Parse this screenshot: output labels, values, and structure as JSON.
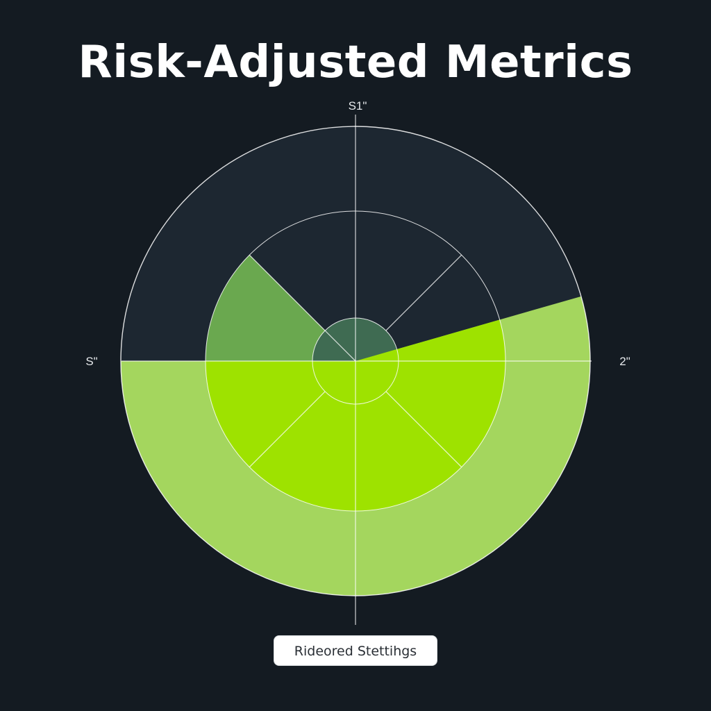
{
  "header": {
    "title": "Risk-Adjusted Metrics"
  },
  "chart_data": {
    "type": "pie",
    "style": "radial",
    "axis_labels": {
      "top": "S1\"",
      "left": "S\"",
      "right": "2\""
    },
    "rings": 3,
    "wedges": [
      {
        "from_deg": 0,
        "to_deg": 16,
        "ring": "outer",
        "level": "high",
        "color": "#a4d65e"
      },
      {
        "from_deg": 16,
        "to_deg": 180,
        "ring": "middle",
        "level": "medium",
        "color": "#9ee200"
      },
      {
        "from_deg": 180,
        "to_deg": 360,
        "ring": "outer",
        "level": "high",
        "color": "#a4d65e"
      },
      {
        "from_deg": 135,
        "to_deg": 180,
        "ring": "middle",
        "level": "low",
        "color": "#6aa84f"
      },
      {
        "from_deg": 0,
        "to_deg": 16,
        "ring": "middle",
        "level": "medium",
        "color": "#9ee200"
      }
    ],
    "legend": "none",
    "grid": true,
    "colors": {
      "background": "#141b22",
      "disk": "#1d2731",
      "outer_fill": "#a4d65e",
      "inner_fill": "#9ee200",
      "muted_fill": "#6aa84f",
      "center_fill": "#3f6b52",
      "grid_line": "#ffffff"
    }
  },
  "settings_button": {
    "label": "Rideored Stettihgs"
  }
}
